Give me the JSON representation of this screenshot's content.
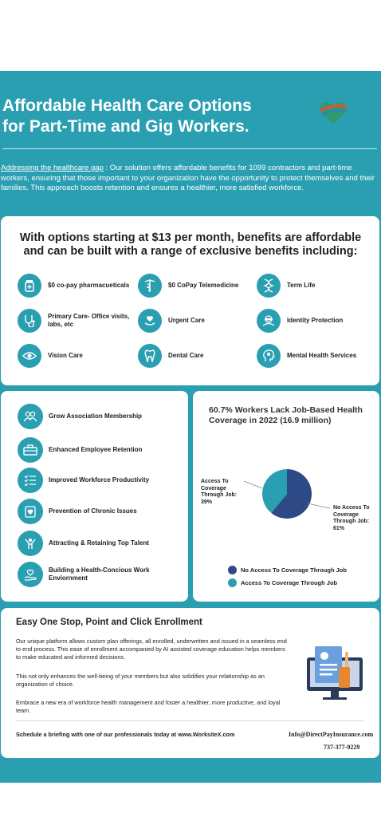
{
  "header": {
    "title_line1": "Affordable Health Care Options",
    "title_line2": "for Part-Time and Gig Workers.",
    "intro_link": "Addressing the healthcare gap",
    "intro_text": " : Our solution offers affordable benefits for 1099 contractors and part-time workers, ensuring that those important to your organization have the opportunity to protect themselves and their families. This approach boosts retention and ensures a healthier, more satisfied workforce."
  },
  "benefits": {
    "headline_line1": "With options starting at $13 per month, benefits are affordable",
    "headline_line2": "and can be built with a range of exclusive benefits including:",
    "items": [
      {
        "label": "$0 co-pay pharmacueticals",
        "icon": "pill-bottle-icon"
      },
      {
        "label": "$0 CoPay Telemedicine",
        "icon": "caduceus-icon"
      },
      {
        "label": "Term Life",
        "icon": "dna-icon"
      },
      {
        "label": "Primary Care- Office visits, labs, etc",
        "icon": "stethoscope-icon"
      },
      {
        "label": "Urgent Care",
        "icon": "hand-heart-icon"
      },
      {
        "label": "Identity Protection",
        "icon": "mask-icon"
      },
      {
        "label": "Vision Care",
        "icon": "eye-icon"
      },
      {
        "label": "Dental Care",
        "icon": "tooth-icon"
      },
      {
        "label": "Mental Health Services",
        "icon": "head-gear-icon"
      }
    ]
  },
  "advantages": {
    "items": [
      {
        "label": "Grow Association Membership",
        "icon": "people-icon"
      },
      {
        "label": "Enhanced Employee Retention",
        "icon": "briefcase-icon"
      },
      {
        "label": "Improved Workforce Productivity",
        "icon": "checklist-icon"
      },
      {
        "label": "Prevention of Chronic Issues",
        "icon": "heart-clipboard-icon"
      },
      {
        "label": "Attracting & Retaining Top Talent",
        "icon": "trophy-person-icon"
      },
      {
        "label": "Building a Health-Concious Work Enviornment",
        "icon": "heart-hand-icon"
      }
    ]
  },
  "chart_data": {
    "type": "pie",
    "title": "60.7% Workers Lack Job-Based Health Coverage in 2022 (16.9 million)",
    "slices": [
      {
        "name": "No Access To Coverage Through Job",
        "value": 61,
        "color": "#2d4a86",
        "annotation_lines": [
          "No Access To",
          "Coverage",
          "Through Job:",
          "61%"
        ]
      },
      {
        "name": "Access To Coverage Through Job",
        "value": 39,
        "color": "#2b9fb2",
        "annotation_lines": [
          "Access To",
          "Coverage",
          "Through Job:",
          "39%"
        ]
      }
    ],
    "legend_placement": "bottom"
  },
  "enrollment": {
    "title": "Easy One Stop, Point and Click Enrollment",
    "p1": "Our unique platform allows custom plan offerings, all enrolled, underwritten and issued in a seamless end to end process. This ease of enrollment accompanied by AI assisted coverage education helps members to make educated and informed decisions.",
    "p2": "This not only enhances the well-being of your members but also solidifies your relationship as an organization of choice.",
    "p3": "Embrace a new era of workforce health management and foster a healthier, more productive, and loyal team.",
    "footer_left": "Schedule a briefing with one of our professionals today at  www.WorksiteX.com",
    "email": "Info@DirectPayInsurance.com",
    "phone": "737-377-9229"
  },
  "colors": {
    "teal": "#2b9fb2",
    "navy": "#2d4a86"
  }
}
